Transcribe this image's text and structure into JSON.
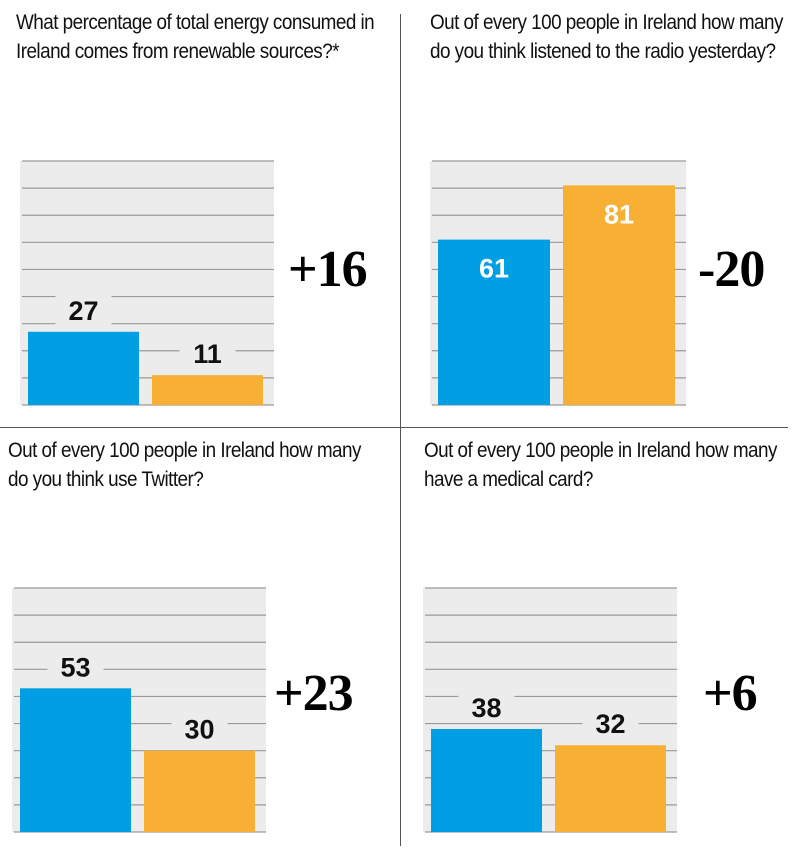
{
  "colors": {
    "blue": "#009fe3",
    "orange": "#f7b033",
    "grid_bg": "#ececec",
    "grid_line": "#9a9a9a"
  },
  "chart_data": [
    {
      "type": "bar",
      "title": "What percentage of total energy consumed in Ireland comes from renewable sources?*",
      "values": [
        27,
        11
      ],
      "delta": "+16",
      "ylim": [
        0,
        90
      ],
      "grid": true
    },
    {
      "type": "bar",
      "title": "Out of every 100 people in Ireland how many do you think listened to the radio yesterday?",
      "values": [
        61,
        81
      ],
      "delta": "-20",
      "ylim": [
        0,
        90
      ],
      "grid": true
    },
    {
      "type": "bar",
      "title": "Out of every 100 people in Ireland how many do you think use Twitter?",
      "values": [
        53,
        30
      ],
      "delta": "+23",
      "ylim": [
        0,
        90
      ],
      "grid": true
    },
    {
      "type": "bar",
      "title": "Out of every 100 people in Ireland how many have a medical card?",
      "values": [
        38,
        32
      ],
      "delta": "+6",
      "ylim": [
        0,
        90
      ],
      "grid": true
    }
  ]
}
